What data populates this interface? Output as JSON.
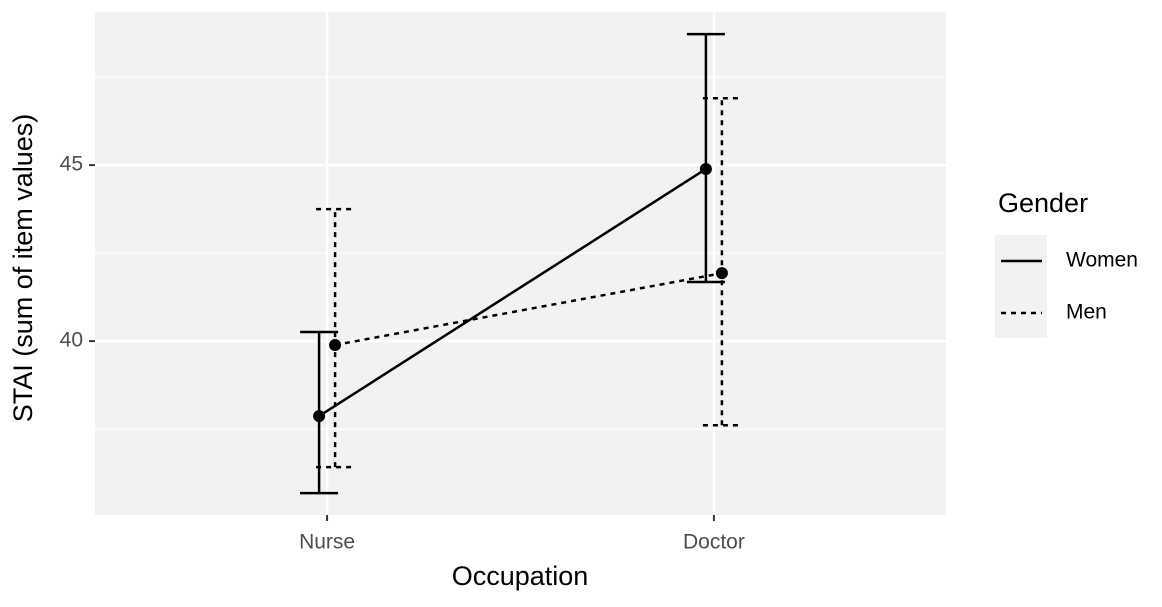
{
  "chart_data": {
    "type": "line",
    "x_label": "Occupation",
    "y_label": "STAI (sum of item values)",
    "categories": [
      "Nurse",
      "Doctor"
    ],
    "series": [
      {
        "name": "Women",
        "color": "#000000",
        "linetype": "solid",
        "values": [
          37.87,
          44.89
        ],
        "lower": [
          35.68,
          41.68
        ],
        "upper": [
          40.26,
          48.72
        ]
      },
      {
        "name": "Men",
        "color": "#000000",
        "linetype": "dashed",
        "values": [
          39.89,
          41.93
        ],
        "lower": [
          36.42,
          37.61
        ],
        "upper": [
          43.75,
          46.9
        ]
      }
    ],
    "ylim": [
      35.06,
      49.35
    ],
    "yticks": [
      40,
      45
    ],
    "yminor": [
      37.5,
      42.5,
      47.5
    ],
    "grid": true,
    "legend_title": "Gender",
    "legend_position": "right"
  }
}
